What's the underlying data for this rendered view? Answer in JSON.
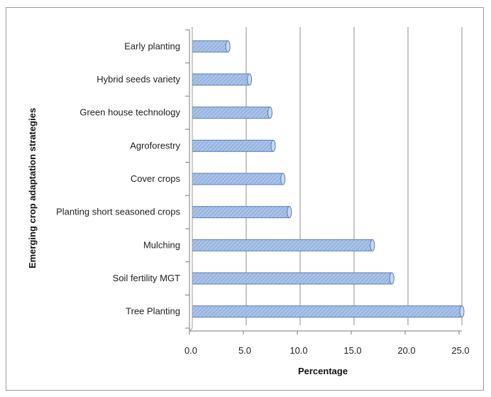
{
  "chart_data": {
    "type": "bar",
    "orientation": "horizontal",
    "categories": [
      "Early planting",
      "Hybrid seeds variety",
      "Green house technology",
      "Agroforestry",
      "Cover crops",
      "Planting short seasoned crops",
      "Mulching",
      "Soil fertility MGT",
      "Tree Planting"
    ],
    "values": [
      3.3,
      5.3,
      7.2,
      7.5,
      8.4,
      9.0,
      16.7,
      18.5,
      25.0
    ],
    "xlabel": "Percentage",
    "ylabel": "Emerging crop adaptation strategies",
    "xlim": [
      0,
      25
    ],
    "x_ticks": [
      "0.0",
      "5.0",
      "10.0",
      "15.0",
      "20.0",
      "25.0"
    ],
    "grid": "vertical",
    "bar_color": "#9db9e3",
    "bar_edge_color": "#5a7fb5"
  }
}
